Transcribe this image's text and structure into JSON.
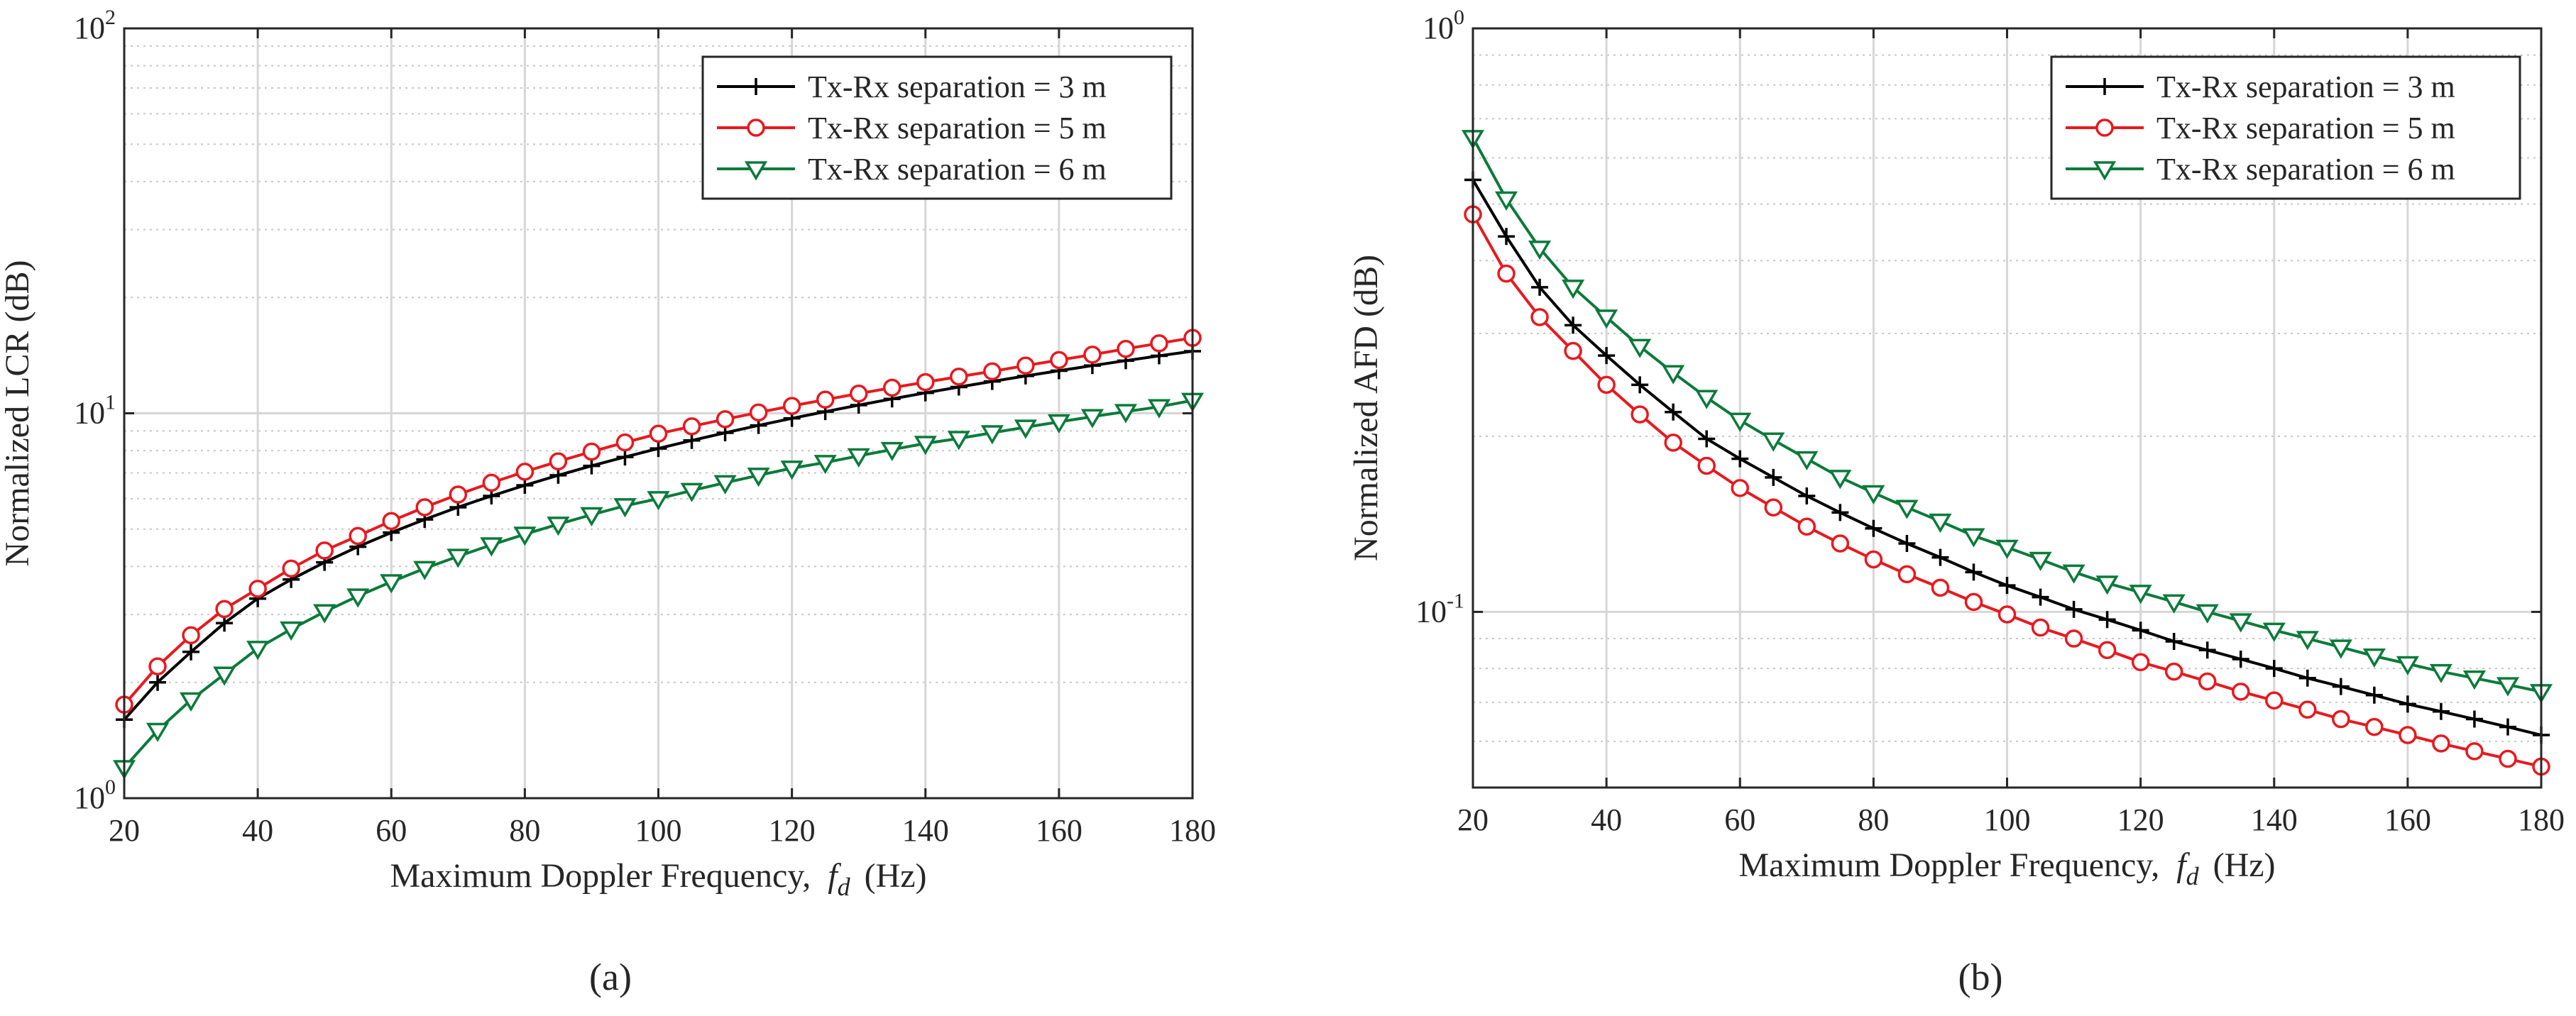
{
  "colors": {
    "black_series": "#000000",
    "red_series": "#e8191f",
    "green_series": "#0b7a3a",
    "grid": "#d6d6d6",
    "axis": "#262626"
  },
  "chart_data": [
    {
      "type": "line",
      "panel_label": "(a)",
      "xlabel": "Maximum Doppler Frequency, f_d (Hz)",
      "xlabel_parts": {
        "main": "Maximum Doppler Frequency, ",
        "var": "f",
        "sub": "d",
        "unit": " (Hz)"
      },
      "ylabel": "Normalized LCR (dB)",
      "xlim": [
        20,
        180
      ],
      "ylim": [
        1,
        100
      ],
      "yscale": "log",
      "grid": true,
      "legend_position": "top-right",
      "xticks": [
        20,
        40,
        60,
        80,
        100,
        120,
        140,
        160,
        180
      ],
      "yticks": [
        {
          "base": "10",
          "exp": "0",
          "value": 1
        },
        {
          "base": "10",
          "exp": "1",
          "value": 10
        },
        {
          "base": "10",
          "exp": "2",
          "value": 100
        }
      ],
      "x": [
        20,
        25,
        30,
        35,
        40,
        45,
        50,
        55,
        60,
        65,
        70,
        75,
        80,
        85,
        90,
        95,
        100,
        105,
        110,
        115,
        120,
        125,
        130,
        135,
        140,
        145,
        150,
        155,
        160,
        165,
        170,
        175,
        180
      ],
      "series": [
        {
          "name": "Tx-Rx separation = 3 m",
          "color": "#000000",
          "marker": "plus",
          "values": [
            1.6,
            2.0,
            2.4,
            2.85,
            3.3,
            3.7,
            4.1,
            4.5,
            4.9,
            5.3,
            5.7,
            6.1,
            6.5,
            6.9,
            7.3,
            7.7,
            8.1,
            8.5,
            8.9,
            9.3,
            9.7,
            10.1,
            10.5,
            10.9,
            11.3,
            11.7,
            12.1,
            12.5,
            12.9,
            13.3,
            13.7,
            14.1,
            14.5
          ]
        },
        {
          "name": "Tx-Rx separation = 5 m",
          "color": "#e8191f",
          "marker": "circle",
          "values": [
            1.75,
            2.2,
            2.65,
            3.1,
            3.5,
            3.95,
            4.4,
            4.8,
            5.25,
            5.7,
            6.15,
            6.6,
            7.05,
            7.5,
            7.95,
            8.4,
            8.85,
            9.25,
            9.65,
            10.05,
            10.45,
            10.85,
            11.25,
            11.65,
            12.05,
            12.45,
            12.85,
            13.3,
            13.75,
            14.2,
            14.7,
            15.2,
            15.7
          ]
        },
        {
          "name": "Tx-Rx separation = 6 m",
          "color": "#0b7a3a",
          "marker": "triangle-down",
          "values": [
            1.2,
            1.5,
            1.8,
            2.1,
            2.45,
            2.75,
            3.05,
            3.35,
            3.65,
            3.95,
            4.25,
            4.55,
            4.85,
            5.15,
            5.45,
            5.75,
            6.0,
            6.3,
            6.6,
            6.9,
            7.2,
            7.45,
            7.75,
            8.05,
            8.35,
            8.6,
            8.9,
            9.2,
            9.5,
            9.8,
            10.1,
            10.4,
            10.8
          ]
        }
      ]
    },
    {
      "type": "line",
      "panel_label": "(b)",
      "xlabel": "Maximum Doppler Frequency, f_d (Hz)",
      "xlabel_parts": {
        "main": "Maximum Doppler Frequency, ",
        "var": "f",
        "sub": "d",
        "unit": " (Hz)"
      },
      "ylabel": "Normalized AFD (dB)",
      "xlim": [
        20,
        180
      ],
      "ylim": [
        0.05,
        1
      ],
      "yscale": "log",
      "grid": true,
      "legend_position": "top-right",
      "xticks": [
        20,
        40,
        60,
        80,
        100,
        120,
        140,
        160,
        180
      ],
      "yticks": [
        {
          "base": "10",
          "exp": "-1",
          "value": 0.1
        },
        {
          "base": "10",
          "exp": "0",
          "value": 1
        }
      ],
      "x": [
        20,
        25,
        30,
        35,
        40,
        45,
        50,
        55,
        60,
        65,
        70,
        75,
        80,
        85,
        90,
        95,
        100,
        105,
        110,
        115,
        120,
        125,
        130,
        135,
        140,
        145,
        150,
        155,
        160,
        165,
        170,
        175,
        180
      ],
      "series": [
        {
          "name": "Tx-Rx separation = 3 m",
          "color": "#000000",
          "marker": "plus",
          "values": [
            0.55,
            0.44,
            0.36,
            0.31,
            0.275,
            0.245,
            0.22,
            0.198,
            0.183,
            0.17,
            0.158,
            0.148,
            0.139,
            0.131,
            0.124,
            0.117,
            0.111,
            0.106,
            0.101,
            0.097,
            0.093,
            0.089,
            0.086,
            0.083,
            0.08,
            0.077,
            0.0745,
            0.072,
            0.0695,
            0.0675,
            0.0655,
            0.0635,
            0.0615
          ]
        },
        {
          "name": "Tx-Rx separation = 5 m",
          "color": "#e8191f",
          "marker": "circle",
          "values": [
            0.48,
            0.38,
            0.32,
            0.28,
            0.245,
            0.218,
            0.195,
            0.178,
            0.163,
            0.151,
            0.14,
            0.131,
            0.123,
            0.116,
            0.11,
            0.104,
            0.099,
            0.094,
            0.09,
            0.086,
            0.082,
            0.079,
            0.076,
            0.073,
            0.0705,
            0.068,
            0.0655,
            0.0635,
            0.0615,
            0.0595,
            0.0577,
            0.056,
            0.0543
          ]
        },
        {
          "name": "Tx-Rx separation = 6 m",
          "color": "#0b7a3a",
          "marker": "triangle-down",
          "values": [
            0.65,
            0.51,
            0.42,
            0.36,
            0.32,
            0.285,
            0.257,
            0.233,
            0.213,
            0.197,
            0.183,
            0.17,
            0.16,
            0.151,
            0.143,
            0.135,
            0.129,
            0.123,
            0.117,
            0.112,
            0.108,
            0.104,
            0.1,
            0.0965,
            0.093,
            0.09,
            0.087,
            0.084,
            0.0815,
            0.079,
            0.077,
            0.075,
            0.073
          ]
        }
      ]
    }
  ]
}
